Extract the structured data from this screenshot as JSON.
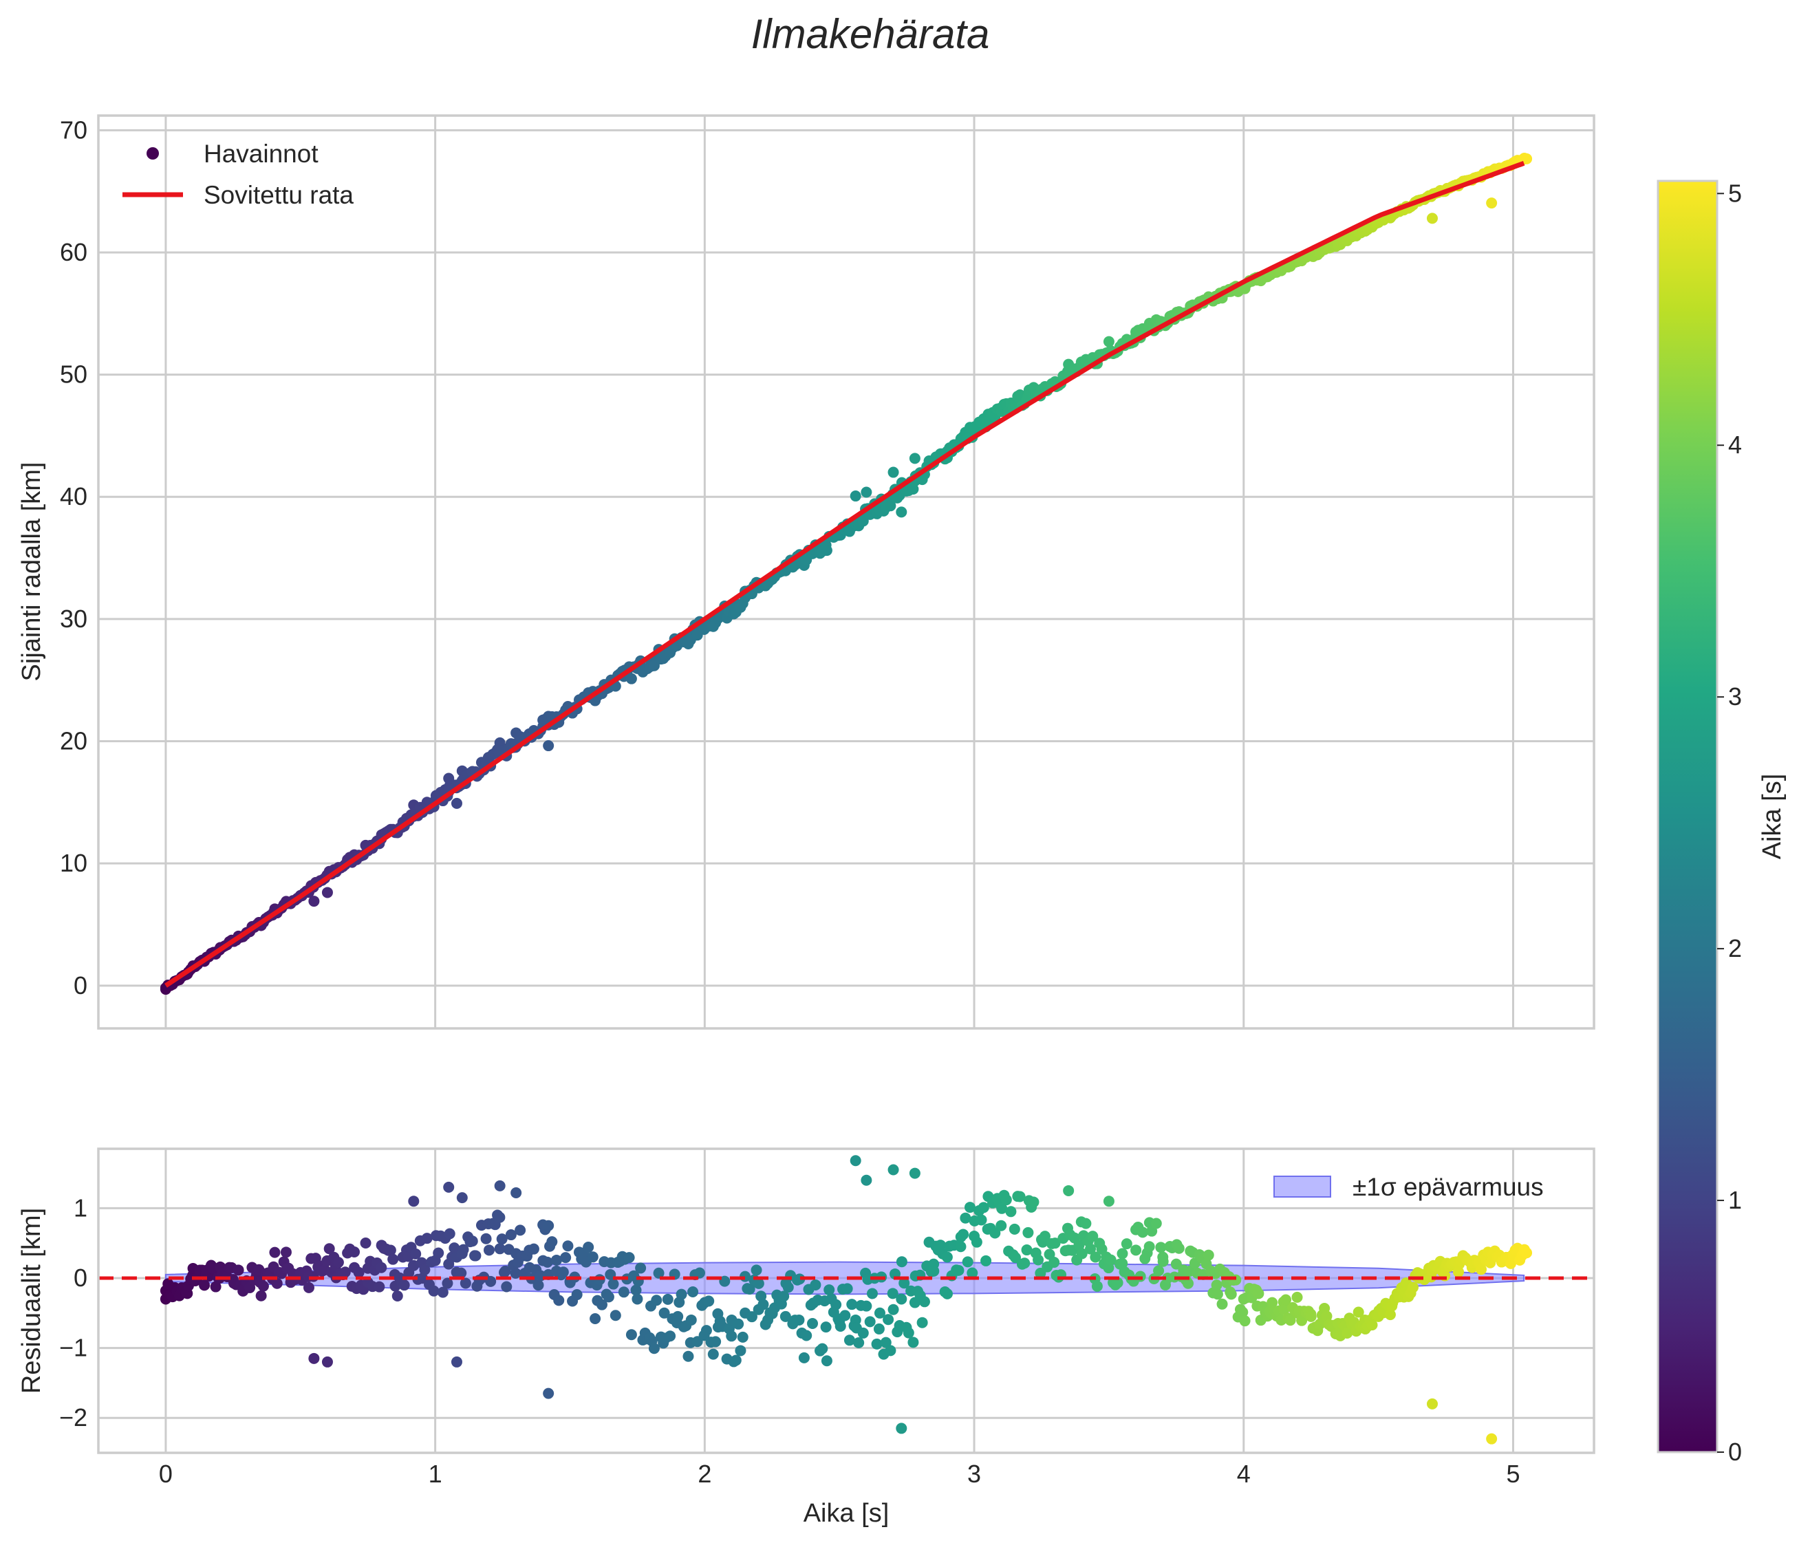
{
  "chart_data": {
    "type": "scatter",
    "title": "Ilmakehärata",
    "colormap": "viridis",
    "colorbar": {
      "label": "Aika [s]",
      "range": [
        0,
        5.05
      ],
      "ticks": [
        "0",
        "1",
        "2",
        "3",
        "4",
        "5"
      ]
    },
    "top_panel": {
      "xlabel": "",
      "ylabel": "Sijainti radalla [km]",
      "xlim": [
        -0.25,
        5.3
      ],
      "ylim": [
        -3.5,
        71.2
      ],
      "yticks": [
        0,
        10,
        20,
        30,
        40,
        50,
        60,
        70
      ],
      "ytick_labels": [
        "0",
        "10",
        "20",
        "30",
        "40",
        "50",
        "60",
        "70"
      ],
      "xticks": [
        0,
        1,
        2,
        3,
        4,
        5
      ],
      "grid": true,
      "legend": {
        "position": "top-left",
        "entries": [
          "Havainnot",
          "Sovitettu rata"
        ]
      },
      "series": [
        {
          "name": "Havainnot",
          "type": "scatter",
          "color_by": "time",
          "x_range": [
            0,
            5.05
          ],
          "n_points": 600,
          "description": "observed track positions, residuals shown in bottom panel"
        },
        {
          "name": "Sovitettu rata",
          "type": "line",
          "color": "#e8141c",
          "x": [
            0,
            0.5,
            1.0,
            1.5,
            2.0,
            2.5,
            3.0,
            3.5,
            4.0,
            4.5,
            5.04
          ],
          "y": [
            0,
            7.3,
            14.9,
            22.5,
            30.0,
            37.5,
            44.9,
            51.6,
            57.6,
            63.0,
            67.3
          ]
        }
      ]
    },
    "bottom_panel": {
      "xlabel": "Aika [s]",
      "ylabel": "Residuaalit [km]",
      "xlim": [
        -0.25,
        5.3
      ],
      "ylim": [
        -2.5,
        1.85
      ],
      "yticks": [
        -2,
        -1,
        0,
        1
      ],
      "ytick_labels": [
        "−2",
        "−1",
        "0",
        "1"
      ],
      "xticks": [
        0,
        1,
        2,
        3,
        4,
        5
      ],
      "xtick_labels": [
        "0",
        "1",
        "2",
        "3",
        "4",
        "5"
      ],
      "grid": true,
      "reference_line": {
        "y": 0,
        "style": "dashed",
        "color": "#e8141c"
      },
      "band": {
        "label": "±1σ epävarmuus",
        "color": "#8c8cff",
        "x": [
          0,
          0.5,
          1.0,
          1.5,
          2.0,
          2.5,
          3.0,
          3.5,
          4.0,
          4.5,
          5.04
        ],
        "sigma": [
          0.05,
          0.1,
          0.16,
          0.2,
          0.22,
          0.23,
          0.22,
          0.2,
          0.18,
          0.14,
          0.04
        ]
      },
      "legend": {
        "position": "top-right",
        "entries": [
          "±1σ epävarmuus"
        ]
      },
      "residuals": {
        "t": [
          0,
          0.08,
          0.1,
          0.15,
          0.2,
          0.25,
          0.3,
          0.35,
          0.4,
          0.45,
          0.5,
          0.53,
          0.58,
          0.63,
          0.7,
          0.75,
          0.8,
          0.85,
          0.88,
          0.9,
          0.92,
          0.95,
          1.0,
          1.05,
          1.08,
          1.1,
          1.15,
          1.2,
          1.24,
          1.26,
          1.3,
          1.35,
          1.4,
          1.42,
          1.45,
          1.5,
          1.55,
          1.6,
          1.65,
          1.7,
          1.75,
          1.8,
          1.85,
          1.9,
          1.95,
          2.0,
          2.05,
          2.1,
          2.15,
          2.2,
          2.25,
          2.3,
          2.35,
          2.4,
          2.45,
          2.5,
          2.56,
          2.6,
          2.65,
          2.7,
          2.73,
          2.78,
          2.8,
          2.85,
          2.9,
          2.95,
          3.0,
          3.05,
          3.1,
          3.15,
          3.2,
          3.25,
          3.3,
          3.35,
          3.4,
          3.45,
          3.5,
          3.55,
          3.6,
          3.65,
          3.7,
          3.75,
          3.8,
          3.85,
          3.9,
          3.95,
          4.0,
          4.05,
          4.1,
          4.15,
          4.2,
          4.25,
          4.3,
          4.35,
          4.4,
          4.45,
          4.5,
          4.55,
          4.6,
          4.65,
          4.7,
          4.75,
          4.8,
          4.85,
          4.9,
          4.95,
          5.0,
          5.04,
          0.92,
          1.05,
          1.1,
          1.24,
          1.3,
          1.42,
          0.55,
          0.6,
          1.08,
          1.42,
          2.56,
          2.6,
          2.7,
          2.78,
          2.73,
          4.92,
          4.7,
          3.35,
          3.5
        ],
        "r": [
          -0.18,
          -0.22,
          0.04,
          0.05,
          0.0,
          -0.02,
          -0.04,
          -0.06,
          0.16,
          0.14,
          0.08,
          0.02,
          0.1,
          0.17,
          0.15,
          0.14,
          0.15,
          0.05,
          0.3,
          0.31,
          0.18,
          0.22,
          0.25,
          0.2,
          0.3,
          0.35,
          0.32,
          0.4,
          0.42,
          0.1,
          0.35,
          0.15,
          0.25,
          0.05,
          0.1,
          -0.05,
          0.3,
          -0.1,
          0.05,
          -0.2,
          -0.3,
          -0.4,
          -0.5,
          -0.55,
          -0.6,
          -0.35,
          -0.7,
          -0.6,
          -0.5,
          -0.45,
          -0.5,
          -0.55,
          -0.6,
          -0.65,
          -0.7,
          -0.62,
          -0.6,
          -0.4,
          -0.5,
          -0.45,
          -0.3,
          -0.35,
          -0.25,
          0.1,
          0.3,
          0.45,
          0.6,
          0.7,
          0.75,
          0.7,
          0.65,
          0.55,
          0.5,
          0.4,
          0.35,
          0.3,
          0.25,
          0.35,
          0.4,
          0.45,
          0.3,
          0.2,
          0.1,
          0.05,
          -0.1,
          -0.2,
          -0.3,
          -0.4,
          -0.5,
          -0.45,
          -0.5,
          -0.55,
          -0.6,
          -0.65,
          -0.62,
          -0.6,
          -0.55,
          -0.4,
          -0.2,
          0.0,
          0.1,
          0.15,
          0.2,
          0.22,
          0.25,
          0.3,
          0.32,
          0.38,
          1.1,
          1.3,
          1.15,
          1.32,
          1.22,
          0.75,
          -1.15,
          -1.2,
          -1.2,
          -1.65,
          1.68,
          1.4,
          1.55,
          1.5,
          -2.15,
          -2.3,
          -1.8,
          1.25,
          1.1
        ]
      }
    }
  }
}
